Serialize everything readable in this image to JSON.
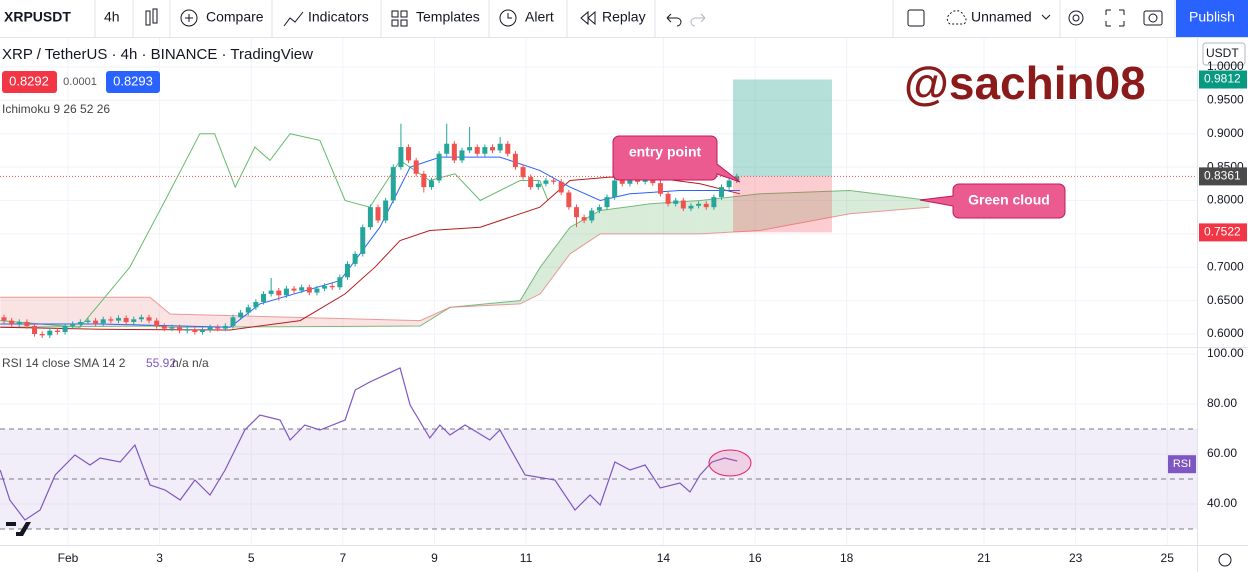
{
  "toolbar": {
    "symbol": "XRPUSDT",
    "interval": "4h",
    "items": [
      "Compare",
      "Indicators",
      "Templates",
      "Alert",
      "Replay"
    ],
    "layout_name": "Unnamed",
    "publish": "Publish"
  },
  "legend": {
    "title": "XRP / TetherUS · 4h · BINANCE · TradingView",
    "bid": "0.8292",
    "spread": "0.0001",
    "ask": "0.8293",
    "indicator": "Ichimoku 9 26 52 26"
  },
  "chart_data": {
    "type": "candlestick",
    "currency": "USDT",
    "candles": [
      [
        0.625,
        0.629,
        0.616,
        0.62
      ],
      [
        0.62,
        0.624,
        0.611,
        0.615
      ],
      [
        0.615,
        0.622,
        0.611,
        0.618
      ],
      [
        0.618,
        0.622,
        0.608,
        0.612
      ],
      [
        0.612,
        0.616,
        0.596,
        0.6
      ],
      [
        0.6,
        0.604,
        0.594,
        0.598
      ],
      [
        0.598,
        0.609,
        0.594,
        0.605
      ],
      [
        0.605,
        0.609,
        0.599,
        0.603
      ],
      [
        0.603,
        0.616,
        0.599,
        0.612
      ],
      [
        0.612,
        0.619,
        0.608,
        0.615
      ],
      [
        0.615,
        0.622,
        0.611,
        0.618
      ],
      [
        0.618,
        0.624,
        0.614,
        0.62
      ],
      [
        0.62,
        0.624,
        0.612,
        0.616
      ],
      [
        0.616,
        0.626,
        0.612,
        0.622
      ],
      [
        0.622,
        0.626,
        0.616,
        0.62
      ],
      [
        0.62,
        0.628,
        0.616,
        0.624
      ],
      [
        0.624,
        0.628,
        0.614,
        0.618
      ],
      [
        0.618,
        0.626,
        0.614,
        0.622
      ],
      [
        0.622,
        0.629,
        0.618,
        0.625
      ],
      [
        0.625,
        0.629,
        0.616,
        0.62
      ],
      [
        0.62,
        0.624,
        0.608,
        0.612
      ],
      [
        0.612,
        0.616,
        0.604,
        0.608
      ],
      [
        0.608,
        0.614,
        0.604,
        0.61
      ],
      [
        0.61,
        0.614,
        0.601,
        0.605
      ],
      [
        0.605,
        0.611,
        0.601,
        0.607
      ],
      [
        0.607,
        0.611,
        0.599,
        0.603
      ],
      [
        0.603,
        0.61,
        0.599,
        0.606
      ],
      [
        0.606,
        0.614,
        0.602,
        0.61
      ],
      [
        0.61,
        0.614,
        0.604,
        0.608
      ],
      [
        0.608,
        0.616,
        0.604,
        0.612
      ],
      [
        0.612,
        0.629,
        0.608,
        0.625
      ],
      [
        0.625,
        0.636,
        0.621,
        0.632
      ],
      [
        0.632,
        0.644,
        0.628,
        0.64
      ],
      [
        0.64,
        0.652,
        0.636,
        0.648
      ],
      [
        0.648,
        0.664,
        0.644,
        0.66
      ],
      [
        0.66,
        0.684,
        0.656,
        0.665
      ],
      [
        0.665,
        0.669,
        0.65,
        0.658
      ],
      [
        0.658,
        0.672,
        0.654,
        0.668
      ],
      [
        0.668,
        0.672,
        0.661,
        0.665
      ],
      [
        0.665,
        0.674,
        0.661,
        0.67
      ],
      [
        0.67,
        0.674,
        0.658,
        0.662
      ],
      [
        0.662,
        0.672,
        0.658,
        0.668
      ],
      [
        0.668,
        0.676,
        0.664,
        0.672
      ],
      [
        0.672,
        0.676,
        0.666,
        0.67
      ],
      [
        0.67,
        0.689,
        0.666,
        0.685
      ],
      [
        0.685,
        0.709,
        0.681,
        0.705
      ],
      [
        0.705,
        0.724,
        0.701,
        0.72
      ],
      [
        0.72,
        0.764,
        0.716,
        0.76
      ],
      [
        0.76,
        0.794,
        0.756,
        0.79
      ],
      [
        0.79,
        0.794,
        0.766,
        0.77
      ],
      [
        0.77,
        0.804,
        0.766,
        0.8
      ],
      [
        0.8,
        0.854,
        0.796,
        0.85
      ],
      [
        0.85,
        0.915,
        0.846,
        0.88
      ],
      [
        0.88,
        0.884,
        0.856,
        0.86
      ],
      [
        0.86,
        0.864,
        0.836,
        0.84
      ],
      [
        0.84,
        0.844,
        0.812,
        0.82
      ],
      [
        0.82,
        0.834,
        0.816,
        0.83
      ],
      [
        0.83,
        0.874,
        0.826,
        0.87
      ],
      [
        0.87,
        0.915,
        0.866,
        0.885
      ],
      [
        0.885,
        0.889,
        0.856,
        0.86
      ],
      [
        0.86,
        0.879,
        0.856,
        0.875
      ],
      [
        0.875,
        0.91,
        0.871,
        0.88
      ],
      [
        0.88,
        0.884,
        0.866,
        0.87
      ],
      [
        0.87,
        0.884,
        0.866,
        0.88
      ],
      [
        0.88,
        0.884,
        0.871,
        0.875
      ],
      [
        0.875,
        0.895,
        0.871,
        0.885
      ],
      [
        0.885,
        0.889,
        0.866,
        0.87
      ],
      [
        0.87,
        0.874,
        0.846,
        0.85
      ],
      [
        0.85,
        0.854,
        0.831,
        0.835
      ],
      [
        0.835,
        0.839,
        0.816,
        0.82
      ],
      [
        0.82,
        0.829,
        0.816,
        0.825
      ],
      [
        0.825,
        0.834,
        0.821,
        0.83
      ],
      [
        0.83,
        0.834,
        0.824,
        0.828
      ],
      [
        0.828,
        0.832,
        0.808,
        0.812
      ],
      [
        0.812,
        0.816,
        0.786,
        0.79
      ],
      [
        0.79,
        0.794,
        0.76,
        0.775
      ],
      [
        0.775,
        0.779,
        0.766,
        0.77
      ],
      [
        0.77,
        0.789,
        0.766,
        0.785
      ],
      [
        0.785,
        0.794,
        0.781,
        0.79
      ],
      [
        0.79,
        0.809,
        0.786,
        0.805
      ],
      [
        0.805,
        0.834,
        0.801,
        0.83
      ],
      [
        0.83,
        0.85,
        0.821,
        0.825
      ],
      [
        0.825,
        0.839,
        0.821,
        0.835
      ],
      [
        0.835,
        0.839,
        0.824,
        0.828
      ],
      [
        0.828,
        0.836,
        0.824,
        0.832
      ],
      [
        0.832,
        0.836,
        0.822,
        0.826
      ],
      [
        0.826,
        0.83,
        0.806,
        0.81
      ],
      [
        0.81,
        0.814,
        0.791,
        0.795
      ],
      [
        0.795,
        0.804,
        0.791,
        0.8
      ],
      [
        0.8,
        0.804,
        0.784,
        0.788
      ],
      [
        0.788,
        0.796,
        0.784,
        0.792
      ],
      [
        0.792,
        0.799,
        0.788,
        0.795
      ],
      [
        0.795,
        0.799,
        0.786,
        0.79
      ],
      [
        0.79,
        0.809,
        0.786,
        0.805
      ],
      [
        0.805,
        0.824,
        0.801,
        0.82
      ],
      [
        0.82,
        0.834,
        0.816,
        0.83
      ],
      [
        0.83,
        0.84,
        0.826,
        0.836
      ]
    ],
    "xlim": [
      -0.485,
      25.65
    ],
    "xticks": [
      {
        "value": 1,
        "label": "Feb"
      },
      3,
      5,
      7,
      9,
      11,
      14,
      16,
      18,
      21,
      23,
      25
    ],
    "ylim": [
      0.5805,
      1.0434
    ],
    "yticks": [
      {
        "value": 0.6,
        "label": "0.6000"
      },
      {
        "value": 0.65,
        "label": "0.6500"
      },
      {
        "value": 0.7,
        "label": "0.7000"
      },
      {
        "value": 0.75,
        "label": "0.7500"
      },
      {
        "value": 0.8,
        "label": "0.8000"
      },
      {
        "value": 0.85,
        "label": "0.8500"
      },
      {
        "value": 0.9,
        "label": "0.9000"
      },
      {
        "value": 0.95,
        "label": "0.9500"
      },
      {
        "value": 1,
        "label": "1.0000"
      }
    ],
    "grid": true,
    "ichimoku": {
      "cloud": {
        "x": [
          -0.48,
          2.79,
          3.23,
          8.69,
          9.34,
          10.87,
          11.31,
          11.96,
          12.62,
          13.71,
          14.8,
          16.11,
          18.07,
          19.81
        ],
        "span_a": [
          0.61,
          0.612,
          0.61,
          0.612,
          0.64,
          0.65,
          0.7,
          0.76,
          0.785,
          0.795,
          0.8,
          0.81,
          0.815,
          0.8
        ],
        "span_b": [
          0.655,
          0.655,
          0.63,
          0.62,
          0.64,
          0.645,
          0.66,
          0.72,
          0.75,
          0.75,
          0.75,
          0.755,
          0.78,
          0.79
        ],
        "colors": [
          "#43a047",
          "#e57373"
        ]
      },
      "kijun": {
        "color": "#b71c1c",
        "x": [
          -0.48,
          1.7,
          4.54,
          6.07,
          7.05,
          7.7,
          8.25,
          8.9,
          10.0,
          11.3,
          11.96,
          12.83,
          13.7,
          14.8,
          15.67
        ],
        "values": [
          0.61,
          0.607,
          0.606,
          0.62,
          0.66,
          0.7,
          0.74,
          0.755,
          0.76,
          0.79,
          0.83,
          0.835,
          0.835,
          0.825,
          0.81
        ]
      },
      "tenkan": {
        "color": "#2962ff",
        "x": [
          -0.48,
          1.7,
          4.54,
          5.19,
          6.94,
          7.81,
          8.47,
          9.12,
          10.43,
          11.3,
          11.96,
          12.62,
          13.27,
          14.36,
          15.67
        ],
        "values": [
          0.615,
          0.615,
          0.61,
          0.645,
          0.68,
          0.76,
          0.85,
          0.865,
          0.865,
          0.845,
          0.82,
          0.8,
          0.81,
          0.815,
          0.815
        ]
      },
      "lagging": {
        "color": "#66bb6a",
        "x": [
          -0.48,
          1.26,
          2.35,
          3.12,
          3.88,
          4.2,
          4.65,
          5.08,
          5.41,
          5.85,
          6.5,
          7.05,
          7.59,
          8.25,
          8.9,
          9.45,
          10.0,
          10.87,
          11.3,
          11.48
        ],
        "values": [
          0.62,
          0.61,
          0.7,
          0.8,
          0.9,
          0.9,
          0.82,
          0.88,
          0.86,
          0.9,
          0.89,
          0.8,
          0.79,
          0.86,
          0.83,
          0.84,
          0.8,
          0.83,
          0.83,
          0.8
        ]
      }
    },
    "position": {
      "x": [
        15.52,
        17.68
      ],
      "target": 0.9812,
      "entry": 0.8361,
      "stop": 0.7522
    },
    "annotations": {
      "entry": "entry point",
      "cloud": "Green cloud",
      "watermark": "@sachin08"
    },
    "rsi": {
      "title": "RSI 14 close SMA 14 2",
      "value": 55.92,
      "na": "n/a n/a",
      "label": "RSI",
      "color": "#7e57c2",
      "x": [
        -0.48,
        -0.27,
        0.06,
        0.39,
        0.72,
        1.15,
        1.48,
        1.7,
        2.14,
        2.46,
        2.79,
        3.12,
        3.45,
        3.77,
        4.1,
        4.43,
        4.86,
        5.19,
        5.63,
        5.85,
        6.17,
        6.5,
        7.05,
        7.27,
        7.59,
        8.25,
        8.47,
        8.9,
        9.12,
        9.34,
        9.67,
        10.21,
        10.43,
        10.98,
        11.63,
        12.07,
        12.4,
        12.62,
        12.94,
        13.27,
        13.6,
        13.93,
        14.36,
        14.58,
        14.8,
        15.06,
        15.34,
        15.61
      ],
      "values": [
        53.6,
        41.6,
        33.6,
        37.6,
        51.6,
        59.6,
        55.6,
        58.4,
        56.8,
        63.6,
        47.6,
        45.6,
        41.6,
        49.6,
        43.6,
        53.6,
        69.6,
        75.6,
        73.6,
        65.6,
        71.6,
        69.6,
        73.6,
        85.6,
        88.8,
        94.4,
        79.6,
        66.4,
        71.6,
        67.6,
        71.6,
        65.6,
        69.6,
        51.6,
        49.6,
        37.6,
        43.6,
        39.6,
        56.8,
        53.6,
        55.6,
        46.4,
        48.4,
        44.8,
        51.6,
        56.8,
        58.4,
        57.2
      ],
      "ylim": [
        23.6,
        102.4
      ],
      "yticks": [
        {
          "value": 100,
          "label": "100.00"
        },
        {
          "value": 80,
          "label": "80.00"
        },
        {
          "value": 60,
          "label": "60.00"
        },
        {
          "value": 40,
          "label": "40.00"
        }
      ],
      "band": [
        30,
        70
      ],
      "mid": 50
    }
  }
}
